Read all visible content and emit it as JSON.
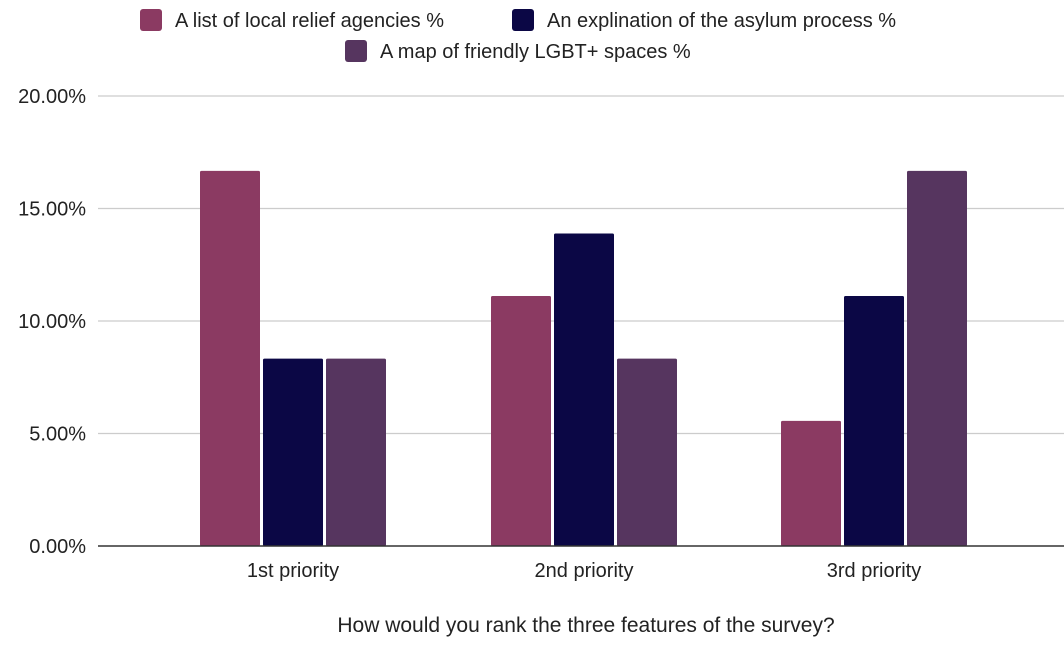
{
  "chart_data": {
    "type": "bar",
    "categories": [
      "1st priority",
      "2nd priority",
      "3rd priority"
    ],
    "series": [
      {
        "name": "A list of local relief agencies %",
        "color": "#8b3a62",
        "values": [
          16.67,
          11.11,
          5.56
        ]
      },
      {
        "name": "An explination of the asylum process %",
        "color": "#0b0745",
        "values": [
          8.33,
          13.89,
          11.11
        ]
      },
      {
        "name": "A map of friendly LGBT+ spaces %",
        "color": "#56355f",
        "values": [
          8.33,
          8.33,
          16.67
        ]
      }
    ],
    "xlabel": "How would you rank the three features of the survey?",
    "ylabel": "",
    "ylim": [
      0,
      20
    ],
    "yticks": [
      "0.00%",
      "5.00%",
      "10.00%",
      "15.00%",
      "20.00%"
    ],
    "grid": true,
    "legend_position": "top"
  }
}
